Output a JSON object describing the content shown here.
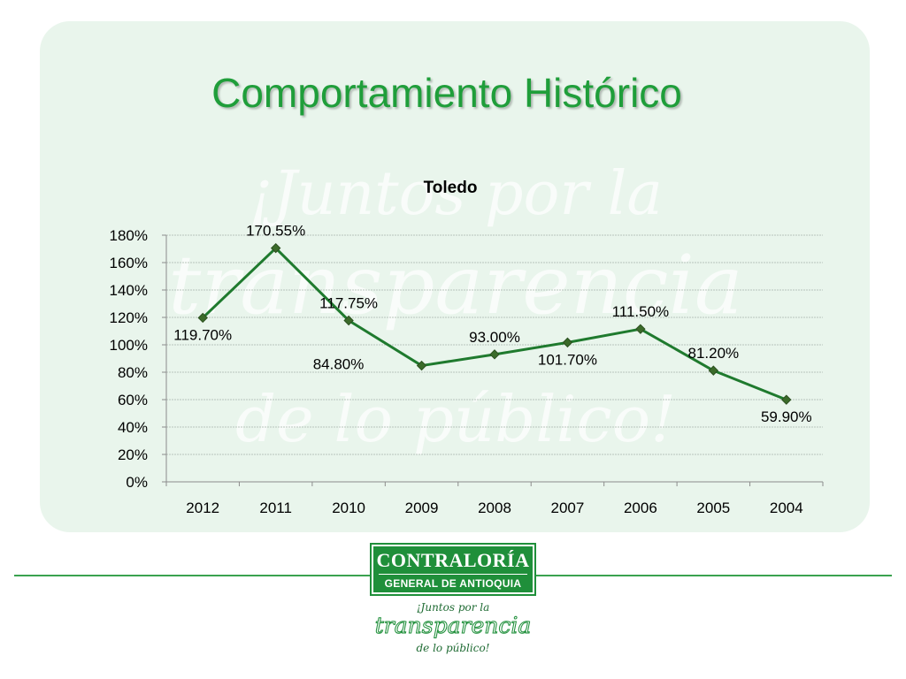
{
  "slide": {
    "title": "Comportamiento Histórico",
    "watermark_lines": [
      "¡Juntos por la",
      "transparencia",
      "de lo público!"
    ]
  },
  "chart_data": {
    "type": "line",
    "title": "Toledo",
    "categories": [
      "2012",
      "2011",
      "2010",
      "2009",
      "2008",
      "2007",
      "2006",
      "2005",
      "2004"
    ],
    "series": [
      {
        "values": [
          119.7,
          170.55,
          117.75,
          84.8,
          93.0,
          101.7,
          111.5,
          81.2,
          59.9
        ]
      }
    ],
    "data_labels": [
      "119.70%",
      "170.55%",
      "117.75%",
      "84.80%",
      "93.00%",
      "101.70%",
      "111.50%",
      "81.20%",
      "59.90%"
    ],
    "label_positions": [
      "below",
      "above",
      "above",
      "left-above",
      "above",
      "below",
      "above",
      "above",
      "below"
    ],
    "y_ticks": [
      "0%",
      "20%",
      "40%",
      "60%",
      "80%",
      "100%",
      "120%",
      "140%",
      "160%",
      "180%"
    ],
    "ylim": [
      0,
      180
    ],
    "grid": true,
    "colors": {
      "line": "#1f7a2e",
      "marker": "#3b6b2a",
      "grid": "#b8c4bb",
      "axis": "#8c8c8c"
    }
  },
  "footer": {
    "logo_line1": "CONTRALORÍA",
    "logo_line2": "GENERAL DE ANTIOQUIA",
    "tagline1": "¡Juntos por la",
    "tagline2": "transparencia",
    "tagline3": "de lo público!",
    "accent_color": "#1f8f3a"
  }
}
